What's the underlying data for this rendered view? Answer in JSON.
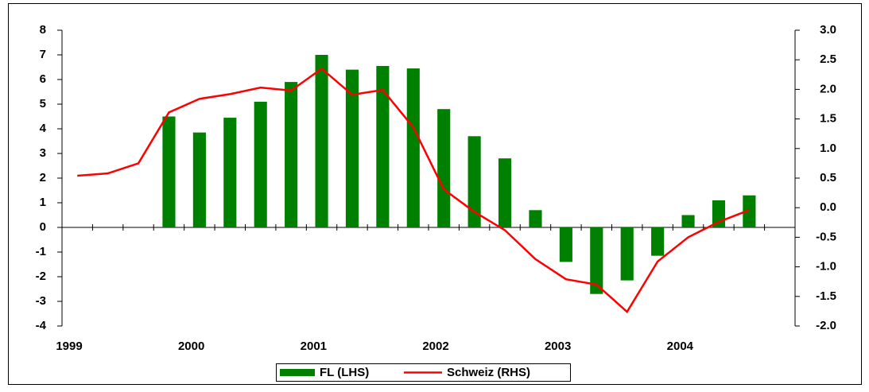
{
  "chart_data": {
    "type": "bar-line",
    "categories": [
      "1999",
      null,
      null,
      null,
      "2000",
      null,
      null,
      null,
      "2001",
      null,
      null,
      null,
      "2002",
      null,
      null,
      null,
      "2003",
      null,
      null,
      null,
      "2004",
      null,
      null,
      null
    ],
    "series": [
      {
        "name": "FL (LHS)",
        "color": "#008000",
        "type": "bar",
        "values": [
          null,
          null,
          null,
          4.5,
          3.85,
          4.45,
          5.1,
          5.9,
          7.0,
          6.4,
          6.55,
          6.45,
          4.8,
          3.7,
          2.8,
          0.7,
          -1.4,
          -2.7,
          -2.15,
          -1.15,
          0.5,
          1.1,
          1.3,
          null
        ]
      },
      {
        "name": "Schweiz (RHS)",
        "color": "#ff0000",
        "type": "line",
        "axis": "y2",
        "values": [
          0.54,
          0.58,
          0.75,
          1.61,
          1.84,
          1.92,
          2.03,
          1.98,
          2.35,
          1.91,
          1.99,
          1.36,
          0.31,
          -0.07,
          -0.38,
          -0.87,
          -1.21,
          -1.3,
          -1.76,
          -0.91,
          -0.5,
          -0.24,
          -0.04,
          null
        ]
      }
    ],
    "ylim": [
      -4,
      8
    ],
    "yticks": [
      -4,
      -3,
      -2,
      -1,
      0,
      1,
      2,
      3,
      4,
      5,
      6,
      7,
      8
    ],
    "y2lim": [
      -2.0,
      3.0
    ],
    "y2ticks": [
      {
        "value": -2.0,
        "label": "-2.0"
      },
      {
        "value": -1.5,
        "label": "-1.5"
      },
      {
        "value": -1.0,
        "label": "-1.0"
      },
      {
        "value": -0.5,
        "label": "-0.5"
      },
      {
        "value": 0.0,
        "label": "0.0"
      },
      {
        "value": 0.5,
        "label": "0.5"
      },
      {
        "value": 1.0,
        "label": "1.0"
      },
      {
        "value": 1.5,
        "label": "1.5"
      },
      {
        "value": 2.0,
        "label": "2.0"
      },
      {
        "value": 2.5,
        "label": "2.5"
      },
      {
        "value": 3.0,
        "label": "3.0"
      }
    ],
    "grid": false,
    "legend": "bottom"
  }
}
